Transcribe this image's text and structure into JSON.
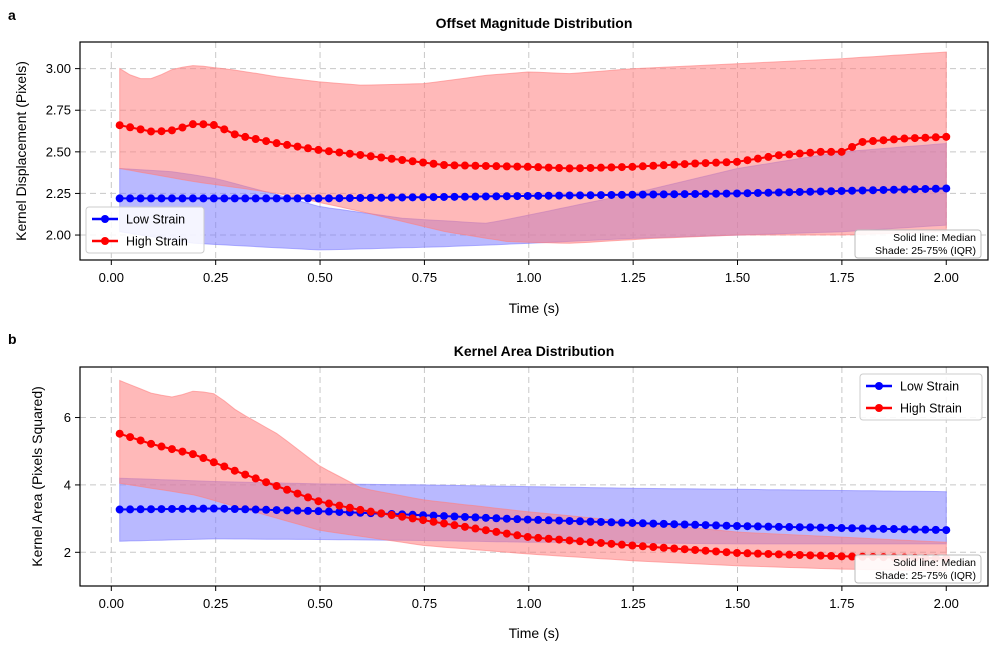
{
  "chart_data": [
    {
      "type": "line",
      "panel_label": "a",
      "title": "Offset Magnitude Distribution",
      "xlabel": "Time (s)",
      "ylabel": "Kernel Displacement (Pixels)",
      "xlim": [
        -0.075,
        2.1
      ],
      "ylim": [
        1.85,
        3.16
      ],
      "xticks": [
        "0.00",
        "0.25",
        "0.50",
        "0.75",
        "1.00",
        "1.25",
        "1.50",
        "1.75",
        "2.00"
      ],
      "xtick_values": [
        0,
        0.25,
        0.5,
        0.75,
        1.0,
        1.25,
        1.5,
        1.75,
        2.0
      ],
      "yticks": [
        "2.00",
        "2.25",
        "2.50",
        "2.75",
        "3.00"
      ],
      "ytick_values": [
        2.0,
        2.25,
        2.5,
        2.75,
        3.0
      ],
      "grid": true,
      "legend_position": "lower-left",
      "annotation": [
        "Solid line: Median",
        "Shade: 25-75% (IQR)"
      ],
      "x_range": [
        0.02,
        2.0
      ],
      "n_points": 80,
      "series": [
        {
          "name": "Low Strain",
          "color": "#0000ff",
          "fill_color": "#8080ff",
          "median_knots": [
            [
              0.02,
              2.22
            ],
            [
              0.5,
              2.22
            ],
            [
              1.0,
              2.235
            ],
            [
              1.5,
              2.25
            ],
            [
              2.0,
              2.28
            ]
          ],
          "q1_knots": [
            [
              0.02,
              2.02
            ],
            [
              0.2,
              1.95
            ],
            [
              0.5,
              1.91
            ],
            [
              0.8,
              1.93
            ],
            [
              1.0,
              1.95
            ],
            [
              1.25,
              1.98
            ],
            [
              1.5,
              2.0
            ],
            [
              1.75,
              2.02
            ],
            [
              2.0,
              2.06
            ]
          ],
          "q3_knots": [
            [
              0.02,
              2.4
            ],
            [
              0.15,
              2.38
            ],
            [
              0.25,
              2.34
            ],
            [
              0.4,
              2.24
            ],
            [
              0.5,
              2.17
            ],
            [
              0.7,
              2.1
            ],
            [
              0.9,
              2.07
            ],
            [
              1.0,
              2.12
            ],
            [
              1.25,
              2.25
            ],
            [
              1.5,
              2.4
            ],
            [
              1.75,
              2.5
            ],
            [
              2.0,
              2.55
            ]
          ]
        },
        {
          "name": "High Strain",
          "color": "#ff0000",
          "fill_color": "#ff8080",
          "median_knots": [
            [
              0.02,
              2.66
            ],
            [
              0.1,
              2.62
            ],
            [
              0.15,
              2.63
            ],
            [
              0.2,
              2.67
            ],
            [
              0.25,
              2.66
            ],
            [
              0.3,
              2.6
            ],
            [
              0.4,
              2.55
            ],
            [
              0.5,
              2.51
            ],
            [
              0.6,
              2.48
            ],
            [
              0.7,
              2.45
            ],
            [
              0.8,
              2.42
            ],
            [
              1.0,
              2.41
            ],
            [
              1.1,
              2.4
            ],
            [
              1.25,
              2.41
            ],
            [
              1.4,
              2.43
            ],
            [
              1.5,
              2.44
            ],
            [
              1.6,
              2.48
            ],
            [
              1.7,
              2.5
            ],
            [
              1.75,
              2.5
            ],
            [
              1.8,
              2.56
            ],
            [
              1.9,
              2.58
            ],
            [
              2.0,
              2.59
            ]
          ],
          "q1_knots": [
            [
              0.02,
              2.4
            ],
            [
              0.2,
              2.32
            ],
            [
              0.4,
              2.25
            ],
            [
              0.6,
              2.14
            ],
            [
              0.8,
              2.02
            ],
            [
              0.95,
              1.96
            ],
            [
              1.1,
              1.95
            ],
            [
              1.3,
              1.98
            ],
            [
              1.5,
              2.0
            ],
            [
              1.75,
              2.0
            ],
            [
              2.0,
              2.02
            ]
          ],
          "q3_knots": [
            [
              0.02,
              3.0
            ],
            [
              0.06,
              2.94
            ],
            [
              0.1,
              2.94
            ],
            [
              0.15,
              3.0
            ],
            [
              0.2,
              3.02
            ],
            [
              0.3,
              2.99
            ],
            [
              0.4,
              2.95
            ],
            [
              0.5,
              2.92
            ],
            [
              0.6,
              2.9
            ],
            [
              0.75,
              2.91
            ],
            [
              0.9,
              2.96
            ],
            [
              1.0,
              2.98
            ],
            [
              1.1,
              2.97
            ],
            [
              1.25,
              3.0
            ],
            [
              1.5,
              3.03
            ],
            [
              1.75,
              3.06
            ],
            [
              2.0,
              3.1
            ]
          ]
        }
      ]
    },
    {
      "type": "line",
      "panel_label": "b",
      "title": "Kernel Area Distribution",
      "xlabel": "Time (s)",
      "ylabel": "Kernel Area (Pixels Squared)",
      "xlim": [
        -0.075,
        2.1
      ],
      "ylim": [
        1.0,
        7.5
      ],
      "xticks": [
        "0.00",
        "0.25",
        "0.50",
        "0.75",
        "1.00",
        "1.25",
        "1.50",
        "1.75",
        "2.00"
      ],
      "xtick_values": [
        0,
        0.25,
        0.5,
        0.75,
        1.0,
        1.25,
        1.5,
        1.75,
        2.0
      ],
      "yticks": [
        "2",
        "4",
        "6"
      ],
      "ytick_values": [
        2,
        4,
        6
      ],
      "grid": true,
      "legend_position": "upper-right",
      "annotation": [
        "Solid line: Median",
        "Shade: 25-75% (IQR)"
      ],
      "x_range": [
        0.02,
        2.0
      ],
      "n_points": 80,
      "series": [
        {
          "name": "Low Strain",
          "color": "#0000ff",
          "fill_color": "#8080ff",
          "median_knots": [
            [
              0.02,
              3.27
            ],
            [
              0.25,
              3.3
            ],
            [
              0.5,
              3.22
            ],
            [
              0.75,
              3.1
            ],
            [
              1.0,
              2.97
            ],
            [
              1.25,
              2.87
            ],
            [
              1.5,
              2.78
            ],
            [
              1.75,
              2.72
            ],
            [
              2.0,
              2.66
            ]
          ],
          "q1_knots": [
            [
              0.02,
              2.33
            ],
            [
              0.25,
              2.4
            ],
            [
              0.5,
              2.38
            ],
            [
              0.75,
              2.35
            ],
            [
              1.0,
              2.3
            ],
            [
              1.25,
              2.28
            ],
            [
              1.5,
              2.25
            ],
            [
              2.0,
              2.25
            ]
          ],
          "q3_knots": [
            [
              0.02,
              4.2
            ],
            [
              0.25,
              4.1
            ],
            [
              0.5,
              4.03
            ],
            [
              0.75,
              4.0
            ],
            [
              1.0,
              3.95
            ],
            [
              1.25,
              3.9
            ],
            [
              1.5,
              3.87
            ],
            [
              2.0,
              3.8
            ]
          ]
        },
        {
          "name": "High Strain",
          "color": "#ff0000",
          "fill_color": "#ff8080",
          "median_knots": [
            [
              0.02,
              5.52
            ],
            [
              0.1,
              5.2
            ],
            [
              0.2,
              4.9
            ],
            [
              0.3,
              4.4
            ],
            [
              0.4,
              3.95
            ],
            [
              0.5,
              3.5
            ],
            [
              0.6,
              3.25
            ],
            [
              0.75,
              2.95
            ],
            [
              0.9,
              2.65
            ],
            [
              1.0,
              2.45
            ],
            [
              1.25,
              2.2
            ],
            [
              1.5,
              1.98
            ],
            [
              1.75,
              1.88
            ],
            [
              2.0,
              1.82
            ]
          ],
          "q1_knots": [
            [
              0.02,
              4.05
            ],
            [
              0.2,
              3.7
            ],
            [
              0.4,
              3.0
            ],
            [
              0.5,
              2.65
            ],
            [
              0.75,
              2.2
            ],
            [
              1.0,
              1.95
            ],
            [
              1.25,
              1.75
            ],
            [
              1.5,
              1.6
            ],
            [
              1.75,
              1.5
            ],
            [
              2.0,
              1.45
            ]
          ],
          "q3_knots": [
            [
              0.02,
              7.1
            ],
            [
              0.1,
              6.7
            ],
            [
              0.15,
              6.6
            ],
            [
              0.2,
              6.8
            ],
            [
              0.25,
              6.7
            ],
            [
              0.3,
              6.2
            ],
            [
              0.4,
              5.5
            ],
            [
              0.5,
              4.55
            ],
            [
              0.6,
              3.9
            ],
            [
              0.75,
              3.55
            ],
            [
              1.0,
              3.2
            ],
            [
              1.25,
              2.9
            ],
            [
              1.5,
              2.6
            ],
            [
              1.75,
              2.45
            ],
            [
              2.0,
              2.3
            ]
          ]
        }
      ]
    }
  ]
}
